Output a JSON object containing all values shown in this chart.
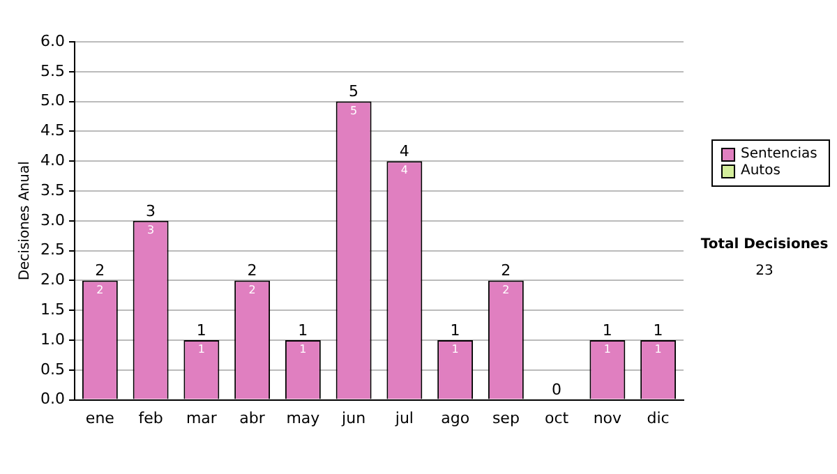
{
  "chart_data": {
    "type": "bar",
    "stacked": true,
    "ylabel": "Decisiones Anual",
    "categories": [
      "ene",
      "feb",
      "mar",
      "abr",
      "may",
      "jun",
      "jul",
      "ago",
      "sep",
      "oct",
      "nov",
      "dic"
    ],
    "series": [
      {
        "name": "Sentencias",
        "color": "#e07fc0",
        "values": [
          2,
          3,
          1,
          2,
          1,
          5,
          4,
          1,
          2,
          0,
          1,
          1
        ],
        "value_labels": [
          "2",
          "3",
          "1",
          "2",
          "1",
          "5",
          "4",
          "1",
          "2",
          null,
          "1",
          "1"
        ]
      },
      {
        "name": "Autos",
        "color": "#d4ee9c",
        "values": [
          0,
          0,
          0,
          0,
          0,
          0,
          0,
          0,
          0,
          0,
          0,
          0
        ]
      }
    ],
    "totals": [
      "2",
      "3",
      "1",
      "2",
      "1",
      "5",
      "4",
      "1",
      "2",
      "0",
      "1",
      "1"
    ],
    "ylim": [
      0,
      6
    ],
    "yticks": [
      {
        "value": 0,
        "label": "0.0"
      },
      {
        "value": 0.5,
        "label": "0.5"
      },
      {
        "value": 1,
        "label": "1.0"
      },
      {
        "value": 1.5,
        "label": "1.5"
      },
      {
        "value": 2,
        "label": "2.0"
      },
      {
        "value": 2.5,
        "label": "2.5"
      },
      {
        "value": 3,
        "label": "3.0"
      },
      {
        "value": 3.5,
        "label": "3.5"
      },
      {
        "value": 4,
        "label": "4.0"
      },
      {
        "value": 4.5,
        "label": "4.5"
      },
      {
        "value": 5,
        "label": "5.0"
      },
      {
        "value": 5.5,
        "label": "5.5"
      },
      {
        "value": 6,
        "label": "6.0"
      }
    ],
    "grid": "y",
    "legend": "right",
    "annotations": [
      "Total Decisiones",
      "23"
    ]
  }
}
